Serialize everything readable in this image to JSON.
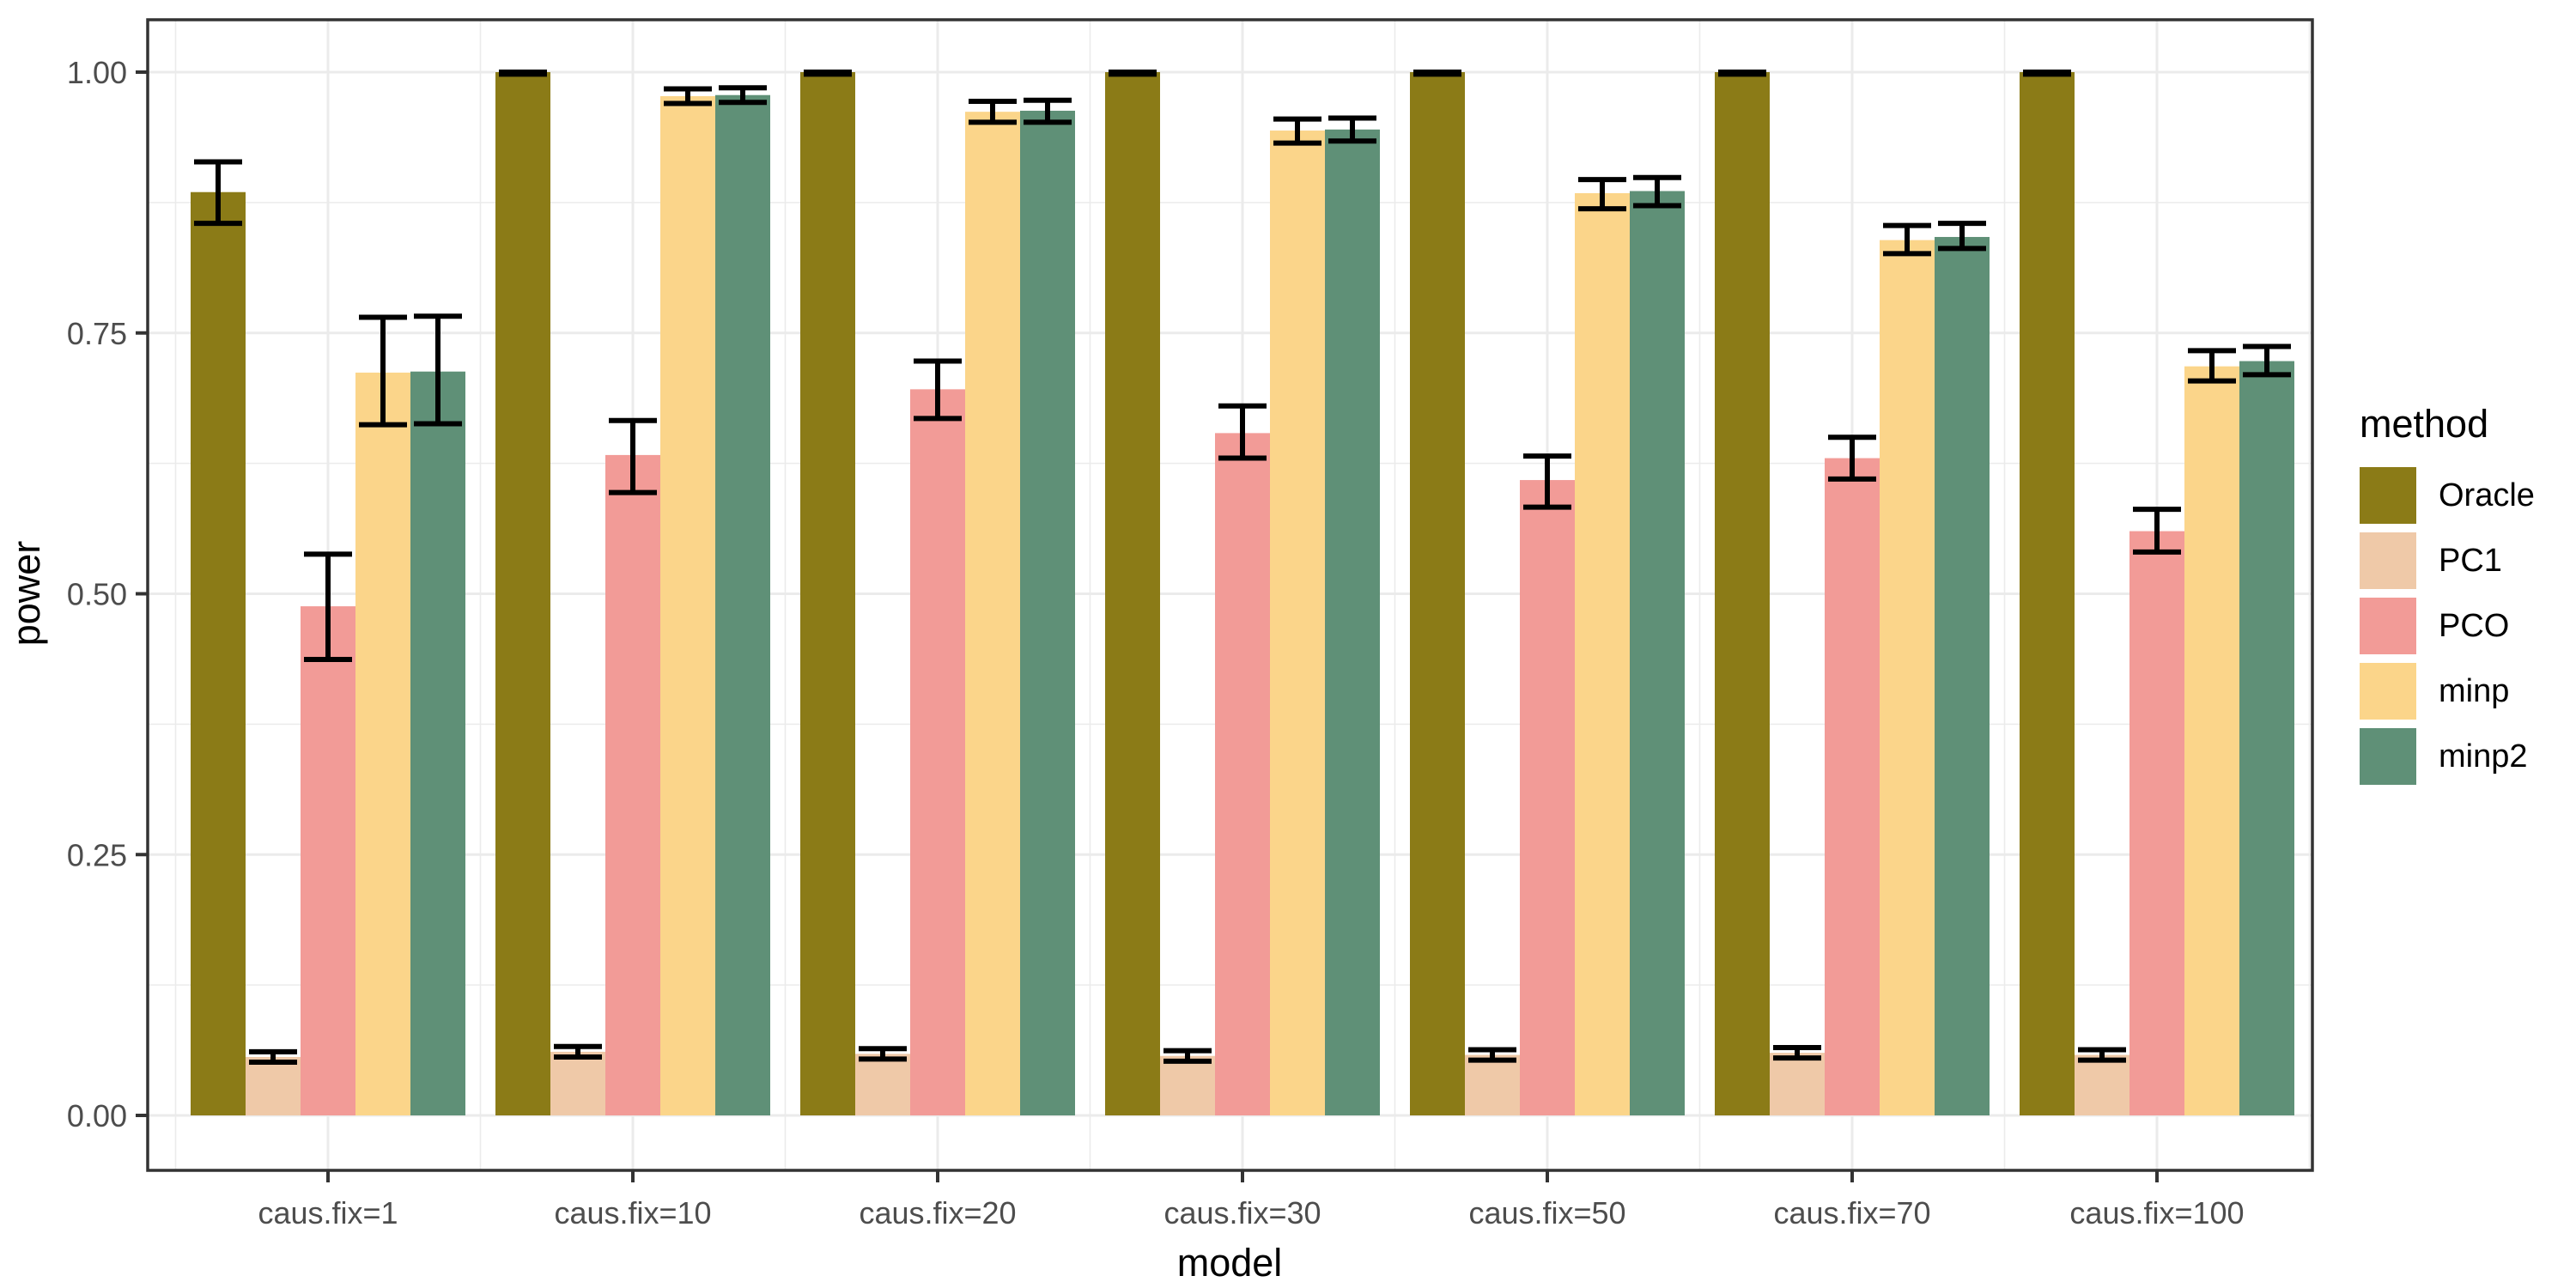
{
  "chart_data": {
    "type": "bar",
    "title": "",
    "xlabel": "model",
    "ylabel": "power",
    "legend_title": "method",
    "legend_position": "right",
    "grid": true,
    "background": "#FFFFFF",
    "gridline_color": "#EBEBEB",
    "panel_border_color": "#333333",
    "errorbar_color": "#000000",
    "ylim": [
      0,
      1.04
    ],
    "ytick_values": [
      0,
      0.25,
      0.5,
      0.75,
      1.0
    ],
    "ytick_labels": [
      "0.00",
      "0.25",
      "0.50",
      "0.75",
      "1.00"
    ],
    "ytick_minor_values": [
      0.125,
      0.375,
      0.625,
      0.875
    ],
    "categories": [
      "caus.fix=1",
      "caus.fix=10",
      "caus.fix=20",
      "caus.fix=30",
      "caus.fix=50",
      "caus.fix=70",
      "caus.fix=100"
    ],
    "error_bars": true,
    "series": [
      {
        "name": "Oracle",
        "color": "#8B7B17",
        "values": [
          0.885,
          1.0,
          1.0,
          1.0,
          1.0,
          1.0,
          1.0
        ],
        "ci_low": [
          0.855,
          0.998,
          0.998,
          0.998,
          0.998,
          0.998,
          0.998
        ],
        "ci_high": [
          0.914,
          1.0,
          1.0,
          1.0,
          1.0,
          1.0,
          1.0
        ]
      },
      {
        "name": "PC1",
        "color": "#EFC9A8",
        "values": [
          0.056,
          0.061,
          0.059,
          0.057,
          0.058,
          0.06,
          0.058
        ],
        "ci_low": [
          0.051,
          0.056,
          0.054,
          0.052,
          0.053,
          0.055,
          0.053
        ],
        "ci_high": [
          0.061,
          0.066,
          0.064,
          0.062,
          0.063,
          0.065,
          0.063
        ]
      },
      {
        "name": "PCO",
        "color": "#F29B97",
        "values": [
          0.488,
          0.633,
          0.696,
          0.654,
          0.609,
          0.63,
          0.56
        ],
        "ci_low": [
          0.437,
          0.597,
          0.668,
          0.63,
          0.583,
          0.61,
          0.54
        ],
        "ci_high": [
          0.538,
          0.666,
          0.723,
          0.68,
          0.632,
          0.65,
          0.581
        ]
      },
      {
        "name": "minp",
        "color": "#FBD58A",
        "values": [
          0.712,
          0.977,
          0.962,
          0.944,
          0.884,
          0.839,
          0.718
        ],
        "ci_low": [
          0.662,
          0.97,
          0.952,
          0.932,
          0.869,
          0.826,
          0.704
        ],
        "ci_high": [
          0.765,
          0.984,
          0.972,
          0.955,
          0.897,
          0.853,
          0.733
        ]
      },
      {
        "name": "minp2",
        "color": "#5F9077",
        "values": [
          0.713,
          0.978,
          0.963,
          0.945,
          0.886,
          0.842,
          0.723
        ],
        "ci_low": [
          0.663,
          0.971,
          0.952,
          0.934,
          0.872,
          0.831,
          0.71
        ],
        "ci_high": [
          0.766,
          0.985,
          0.973,
          0.956,
          0.899,
          0.855,
          0.737
        ]
      }
    ]
  }
}
